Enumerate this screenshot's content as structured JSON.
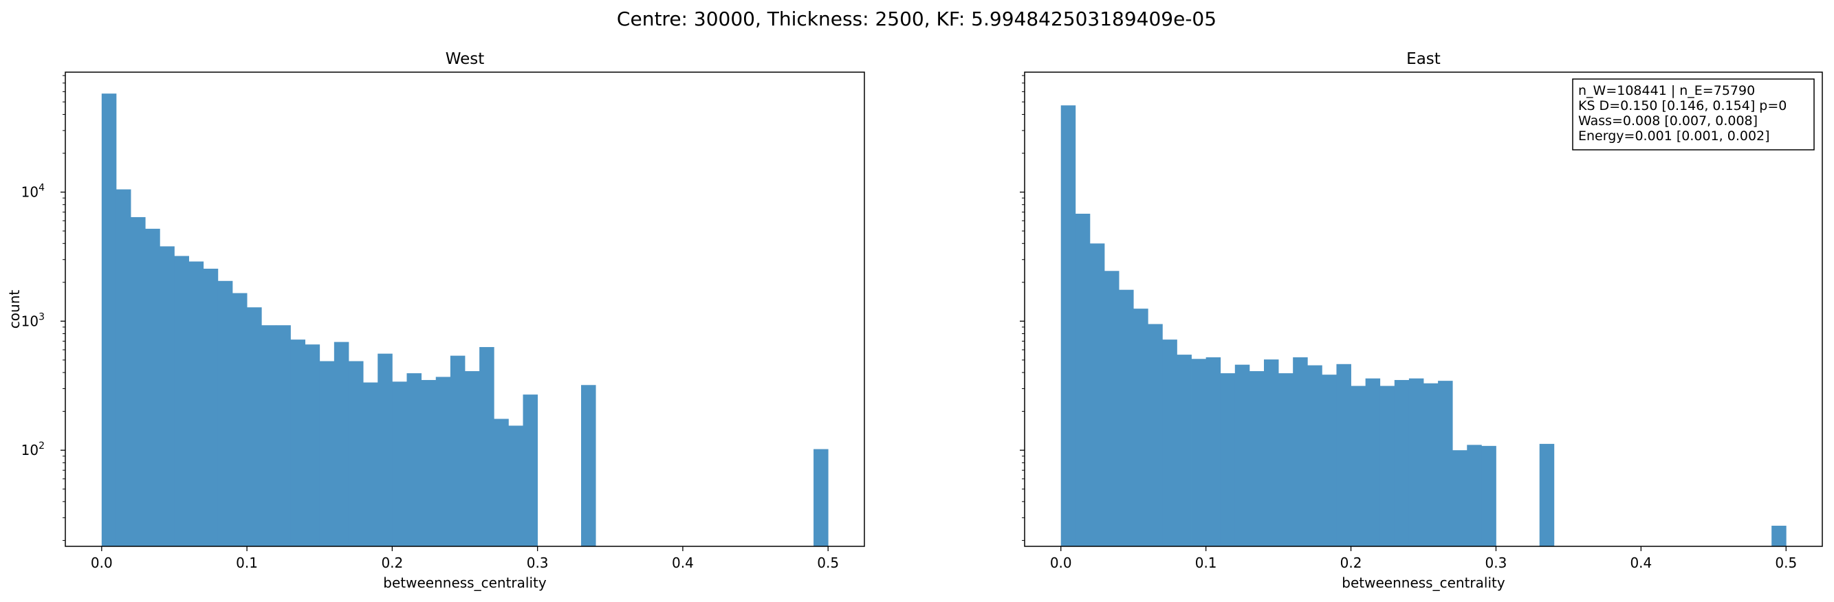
{
  "figure": {
    "title": "Centre: 30000, Thickness: 2500, KF: 5.994842503189409e-05"
  },
  "colors": {
    "bar": "#4c93c4",
    "axis": "#000000",
    "background": "#ffffff"
  },
  "chart_data": [
    {
      "type": "bar",
      "title": "West",
      "xlabel": "betweenness_centrality",
      "ylabel": "count",
      "yscale": "log",
      "xlim": [
        -0.025,
        0.525
      ],
      "ylim": [
        18,
        85000
      ],
      "bin_width": 0.01,
      "x_ticks": [
        "0.0",
        "0.1",
        "0.2",
        "0.3",
        "0.4",
        "0.5"
      ],
      "y_ticks": [
        {
          "value": 100,
          "base": "10",
          "exp": "2"
        },
        {
          "value": 1000,
          "base": "10",
          "exp": "3"
        },
        {
          "value": 10000,
          "base": "10",
          "exp": "4"
        }
      ],
      "bin_starts": [
        0.0,
        0.01,
        0.02,
        0.03,
        0.04,
        0.05,
        0.06,
        0.07,
        0.08,
        0.09,
        0.1,
        0.11,
        0.12,
        0.13,
        0.14,
        0.15,
        0.16,
        0.17,
        0.18,
        0.19,
        0.2,
        0.21,
        0.22,
        0.23,
        0.24,
        0.25,
        0.26,
        0.27,
        0.28,
        0.29,
        0.3,
        0.31,
        0.32,
        0.33,
        0.34,
        0.35,
        0.36,
        0.37,
        0.38,
        0.39,
        0.4,
        0.41,
        0.42,
        0.43,
        0.44,
        0.45,
        0.46,
        0.47,
        0.48,
        0.49
      ],
      "values": [
        58000,
        10500,
        6400,
        5200,
        3800,
        3200,
        2900,
        2550,
        2050,
        1650,
        1280,
        930,
        930,
        720,
        660,
        490,
        690,
        490,
        335,
        560,
        340,
        395,
        350,
        370,
        540,
        410,
        630,
        175,
        155,
        270,
        0,
        0,
        0,
        320,
        0,
        0,
        0,
        0,
        0,
        0,
        0,
        0,
        0,
        0,
        0,
        0,
        0,
        0,
        0,
        102
      ]
    },
    {
      "type": "bar",
      "title": "East",
      "xlabel": "betweenness_centrality",
      "ylabel": "",
      "yscale": "log",
      "xlim": [
        -0.025,
        0.525
      ],
      "ylim": [
        18,
        85000
      ],
      "bin_width": 0.01,
      "x_ticks": [
        "0.0",
        "0.1",
        "0.2",
        "0.3",
        "0.4",
        "0.5"
      ],
      "y_ticks": [],
      "bin_starts": [
        0.0,
        0.01,
        0.02,
        0.03,
        0.04,
        0.05,
        0.06,
        0.07,
        0.08,
        0.09,
        0.1,
        0.11,
        0.12,
        0.13,
        0.14,
        0.15,
        0.16,
        0.17,
        0.18,
        0.19,
        0.2,
        0.21,
        0.22,
        0.23,
        0.24,
        0.25,
        0.26,
        0.27,
        0.28,
        0.29,
        0.3,
        0.31,
        0.32,
        0.33,
        0.34,
        0.35,
        0.36,
        0.37,
        0.38,
        0.39,
        0.4,
        0.41,
        0.42,
        0.43,
        0.44,
        0.45,
        0.46,
        0.47,
        0.48,
        0.49
      ],
      "values": [
        47000,
        6800,
        4000,
        2450,
        1750,
        1250,
        950,
        720,
        550,
        510,
        525,
        395,
        460,
        410,
        505,
        395,
        525,
        455,
        385,
        465,
        315,
        360,
        315,
        350,
        360,
        330,
        345,
        100,
        110,
        108,
        0,
        0,
        0,
        112,
        0,
        0,
        0,
        0,
        0,
        0,
        0,
        0,
        0,
        0,
        0,
        0,
        0,
        0,
        0,
        26
      ],
      "annotation": [
        "n_W=108441 | n_E=75790",
        "KS D=0.150 [0.146, 0.154]  p=0",
        "Wass=0.008 [0.007, 0.008]",
        "Energy=0.001 [0.001, 0.002]"
      ]
    }
  ]
}
